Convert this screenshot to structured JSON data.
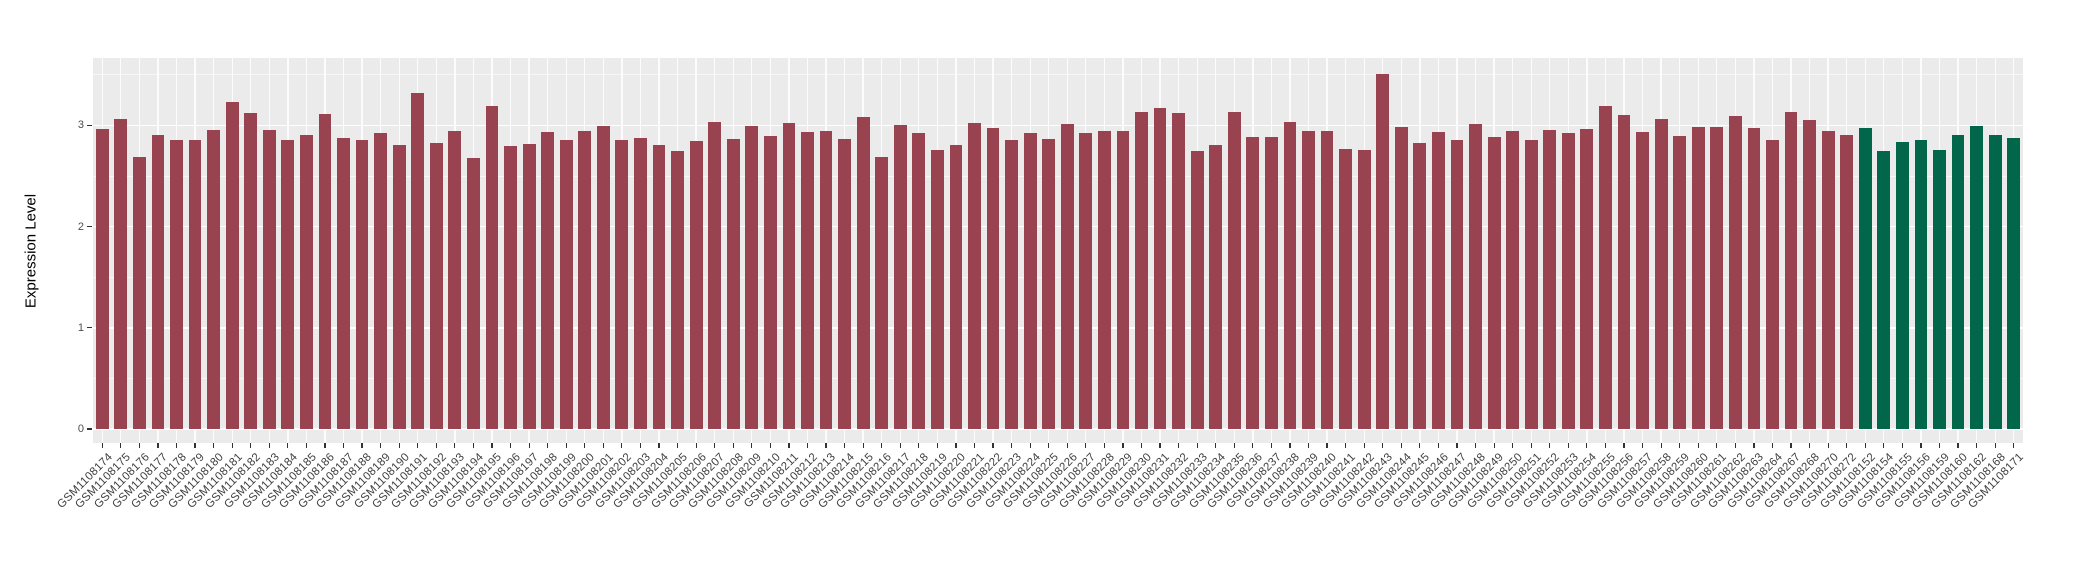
{
  "page": {
    "background": "#FFFFFF"
  },
  "chart_data": {
    "type": "bar",
    "title": "",
    "xlabel": "",
    "ylabel": "Expression Level",
    "yticks": [
      0,
      1,
      2,
      3
    ],
    "ylim": [
      -0.14,
      3.69
    ],
    "grid": "white major and minor horizontal gridlines plus vertical gridlines at each bar on gray panel",
    "legend_position": "none",
    "panel_background": "#EBEBEB",
    "gridline_color": "#FFFFFF",
    "axis_text_color": "#4d4d4d",
    "tick_color": "#333333",
    "group_split_index": 95,
    "group_colors": {
      "left_group": "#9A4350",
      "right_group": "#02664A"
    },
    "categories": [
      "GSM1108174",
      "GSM1108175",
      "GSM1108176",
      "GSM1108177",
      "GSM1108178",
      "GSM1108179",
      "GSM1108180",
      "GSM1108181",
      "GSM1108182",
      "GSM1108183",
      "GSM1108184",
      "GSM1108185",
      "GSM1108186",
      "GSM1108187",
      "GSM1108188",
      "GSM1108189",
      "GSM1108190",
      "GSM1108191",
      "GSM1108192",
      "GSM1108193",
      "GSM1108194",
      "GSM1108195",
      "GSM1108196",
      "GSM1108197",
      "GSM1108198",
      "GSM1108199",
      "GSM1108200",
      "GSM1108201",
      "GSM1108202",
      "GSM1108203",
      "GSM1108204",
      "GSM1108205",
      "GSM1108206",
      "GSM1108207",
      "GSM1108208",
      "GSM1108209",
      "GSM1108210",
      "GSM1108211",
      "GSM1108212",
      "GSM1108213",
      "GSM1108214",
      "GSM1108215",
      "GSM1108216",
      "GSM1108217",
      "GSM1108218",
      "GSM1108219",
      "GSM1108220",
      "GSM1108221",
      "GSM1108222",
      "GSM1108223",
      "GSM1108224",
      "GSM1108225",
      "GSM1108226",
      "GSM1108227",
      "GSM1108228",
      "GSM1108229",
      "GSM1108230",
      "GSM1108231",
      "GSM1108232",
      "GSM1108233",
      "GSM1108234",
      "GSM1108235",
      "GSM1108236",
      "GSM1108237",
      "GSM1108238",
      "GSM1108239",
      "GSM1108240",
      "GSM1108241",
      "GSM1108242",
      "GSM1108243",
      "GSM1108244",
      "GSM1108245",
      "GSM1108246",
      "GSM1108247",
      "GSM1108248",
      "GSM1108249",
      "GSM1108250",
      "GSM1108251",
      "GSM1108252",
      "GSM1108253",
      "GSM1108254",
      "GSM1108255",
      "GSM1108256",
      "GSM1108257",
      "GSM1108258",
      "GSM1108259",
      "GSM1108260",
      "GSM1108261",
      "GSM1108262",
      "GSM1108263",
      "GSM1108264",
      "GSM1108267",
      "GSM1108268",
      "GSM1108270",
      "GSM1108272",
      "GSM1108152",
      "GSM1108154",
      "GSM1108155",
      "GSM1108156",
      "GSM1108159",
      "GSM1108160",
      "GSM1108162",
      "GSM1108168",
      "GSM1108171"
    ],
    "values": [
      2.96,
      3.06,
      2.69,
      2.91,
      2.86,
      2.86,
      2.95,
      3.23,
      3.12,
      2.95,
      2.86,
      2.91,
      3.11,
      2.88,
      2.86,
      2.92,
      2.81,
      3.32,
      2.83,
      2.94,
      2.68,
      3.19,
      2.8,
      2.82,
      2.93,
      2.86,
      2.94,
      2.99,
      2.86,
      2.88,
      2.81,
      2.75,
      2.85,
      3.03,
      2.87,
      2.99,
      2.9,
      3.02,
      2.93,
      2.94,
      2.87,
      3.08,
      2.69,
      3.0,
      2.92,
      2.76,
      2.81,
      3.02,
      2.97,
      2.86,
      2.92,
      2.87,
      3.01,
      2.92,
      2.94,
      2.94,
      3.13,
      3.17,
      3.12,
      2.75,
      2.81,
      3.13,
      2.89,
      2.89,
      3.03,
      2.94,
      2.94,
      2.77,
      2.76,
      3.51,
      2.98,
      2.83,
      2.93,
      2.86,
      3.01,
      2.89,
      2.94,
      2.86,
      2.95,
      2.92,
      2.96,
      3.19,
      3.1,
      2.93,
      3.06,
      2.9,
      2.98,
      2.98,
      3.09,
      2.97,
      2.86,
      3.13,
      3.05,
      2.94,
      2.91,
      2.97,
      2.75,
      2.84,
      2.86,
      2.76,
      2.91,
      2.99,
      2.91,
      2.88
    ]
  }
}
